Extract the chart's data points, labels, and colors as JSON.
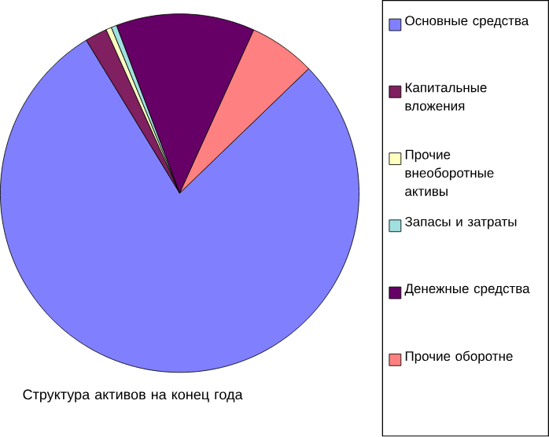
{
  "chart_data": {
    "type": "pie",
    "title": "Структура активов на конец года",
    "categories": [
      "Основные средства",
      "Капитальные вложения",
      "Прочие внеоборотные активы",
      "Запасы и затраты",
      "Денежные средства",
      "Прочие оборотне"
    ],
    "values": [
      78.5,
      2,
      0.5,
      0.5,
      12.5,
      6
    ],
    "colors": [
      "#8080ff",
      "#802060",
      "#ffffc0",
      "#a0e0e0",
      "#660066",
      "#ff8080"
    ],
    "legend": "right"
  }
}
